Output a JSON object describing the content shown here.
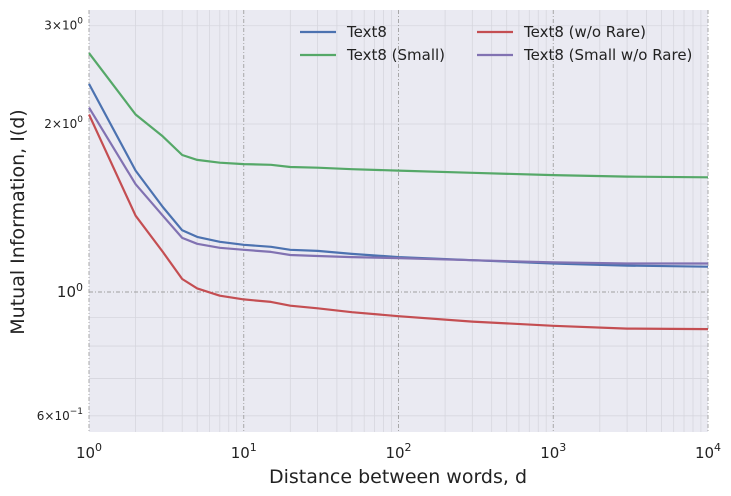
{
  "chart_data": {
    "type": "line",
    "xscale": "log",
    "yscale": "log",
    "xlim": [
      1,
      10000
    ],
    "ylim": [
      0.56,
      3.1
    ],
    "xlabel": "Distance between words, d",
    "ylabel": "Mutual Information, I(d)",
    "legend_placement": "top-right (2 columns)",
    "grid": true,
    "x_ticks": [
      {
        "value": 1,
        "base": "10",
        "exp": "0"
      },
      {
        "value": 10,
        "base": "10",
        "exp": "1"
      },
      {
        "value": 100,
        "base": "10",
        "exp": "2"
      },
      {
        "value": 1000,
        "base": "10",
        "exp": "3"
      },
      {
        "value": 10000,
        "base": "10",
        "exp": "4"
      }
    ],
    "y_ticks": [
      {
        "value": 3,
        "label": "3×10",
        "exp": "0",
        "size": "small"
      },
      {
        "value": 2,
        "label": "2×10",
        "exp": "0",
        "size": "small"
      },
      {
        "value": 1,
        "label": "10",
        "exp": "0",
        "size": "large"
      },
      {
        "value": 0.6,
        "label": "6×10",
        "exp": "−1",
        "size": "small"
      }
    ],
    "x": [
      1,
      2,
      3,
      4,
      5,
      7,
      10,
      15,
      20,
      30,
      50,
      100,
      300,
      1000,
      3000,
      10000
    ],
    "series": [
      {
        "name": "Text8",
        "color": "#4c72b0",
        "values": [
          2.36,
          1.65,
          1.42,
          1.29,
          1.255,
          1.23,
          1.215,
          1.205,
          1.19,
          1.185,
          1.17,
          1.155,
          1.14,
          1.125,
          1.115,
          1.11
        ]
      },
      {
        "name": "Text8 (Small)",
        "color": "#55a868",
        "values": [
          2.68,
          2.08,
          1.9,
          1.76,
          1.725,
          1.705,
          1.695,
          1.69,
          1.675,
          1.67,
          1.66,
          1.65,
          1.635,
          1.62,
          1.61,
          1.605
        ]
      },
      {
        "name": "Text8 (w/o Rare)",
        "color": "#c44e52",
        "values": [
          2.08,
          1.37,
          1.18,
          1.055,
          1.015,
          0.985,
          0.97,
          0.96,
          0.945,
          0.935,
          0.92,
          0.905,
          0.885,
          0.87,
          0.86,
          0.858
        ]
      },
      {
        "name": "Text8 (Small w/o Rare)",
        "color": "#8172b2",
        "values": [
          2.14,
          1.56,
          1.37,
          1.25,
          1.22,
          1.2,
          1.19,
          1.18,
          1.165,
          1.16,
          1.155,
          1.15,
          1.14,
          1.13,
          1.125,
          1.125
        ]
      }
    ]
  }
}
